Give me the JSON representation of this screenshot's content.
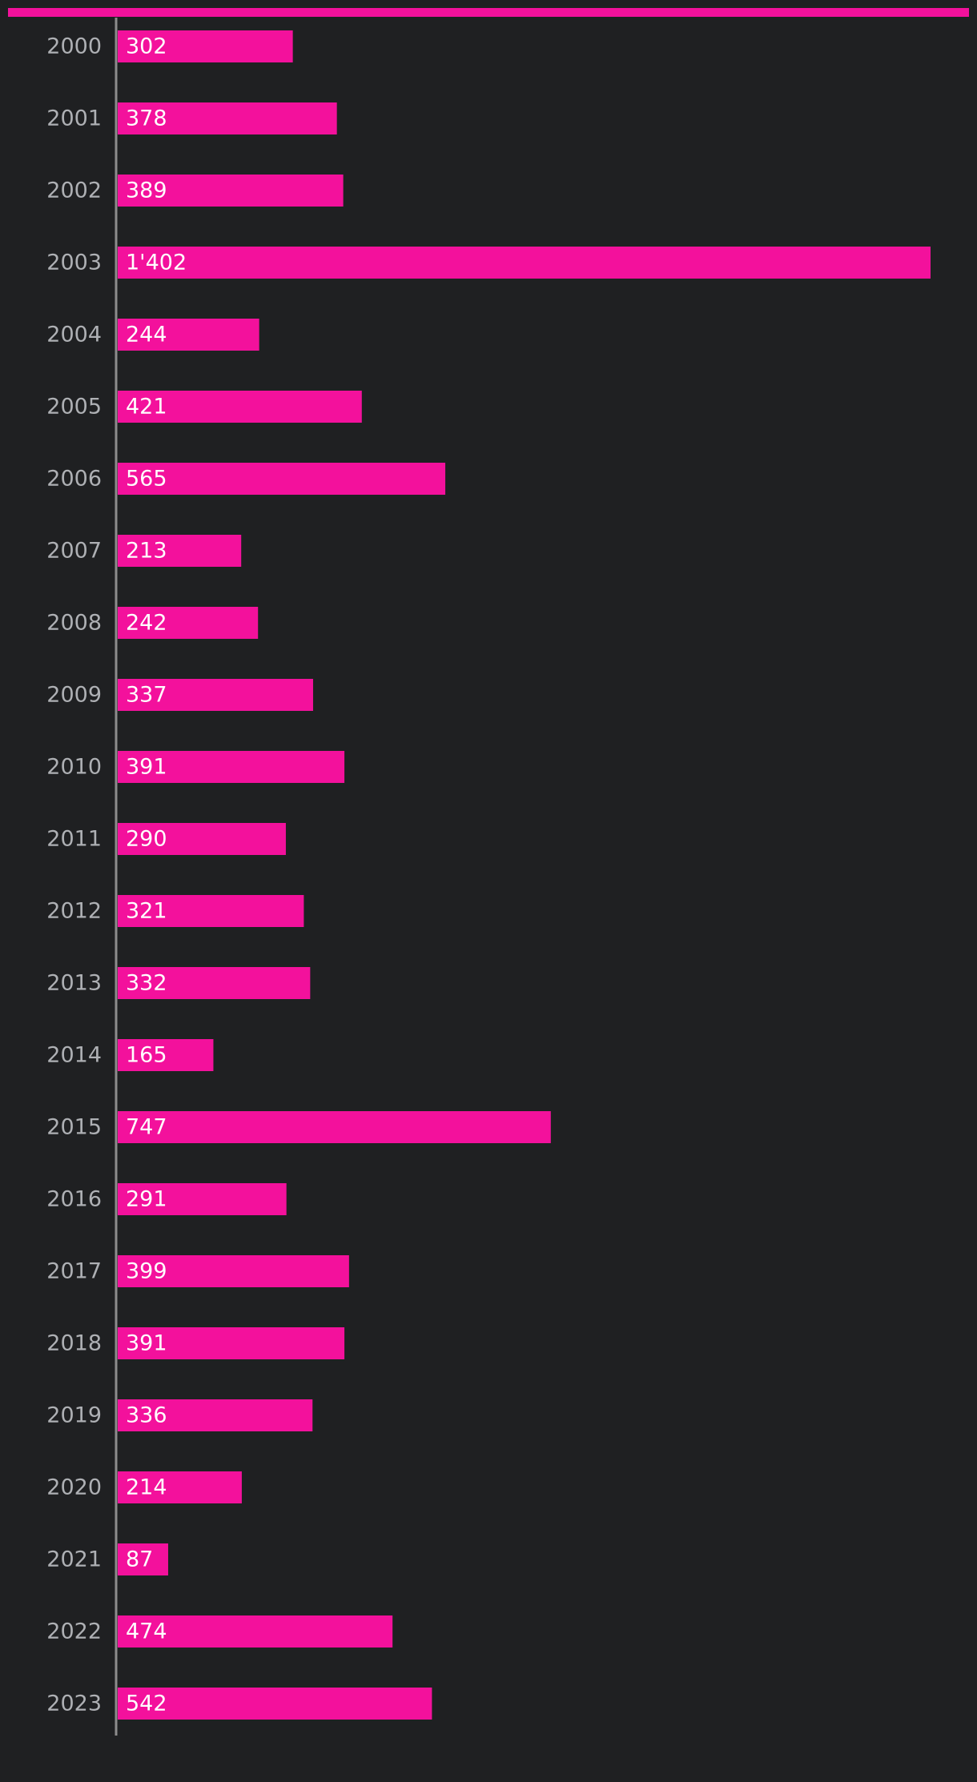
{
  "colors": {
    "background": "#1f2022",
    "bar": "#f3119c",
    "axis": "#8c8c8c",
    "year_text": "#aeb0b4",
    "value_text": "#ffffff"
  },
  "chart_data": {
    "type": "bar",
    "orientation": "horizontal",
    "title": "",
    "xlabel": "",
    "ylabel": "",
    "grid": false,
    "categories": [
      "2000",
      "2001",
      "2002",
      "2003",
      "2004",
      "2005",
      "2006",
      "2007",
      "2008",
      "2009",
      "2010",
      "2011",
      "2012",
      "2013",
      "2014",
      "2015",
      "2016",
      "2017",
      "2018",
      "2019",
      "2020",
      "2021",
      "2022",
      "2023"
    ],
    "values": [
      302,
      378,
      389,
      1402,
      244,
      421,
      565,
      213,
      242,
      337,
      391,
      290,
      321,
      332,
      165,
      747,
      291,
      399,
      391,
      336,
      214,
      87,
      474,
      542
    ],
    "value_labels": [
      "302",
      "378",
      "389",
      "1'402",
      "244",
      "421",
      "565",
      "213",
      "242",
      "337",
      "391",
      "290",
      "321",
      "332",
      "165",
      "747",
      "291",
      "399",
      "391",
      "336",
      "214",
      "87",
      "474",
      "542"
    ]
  }
}
